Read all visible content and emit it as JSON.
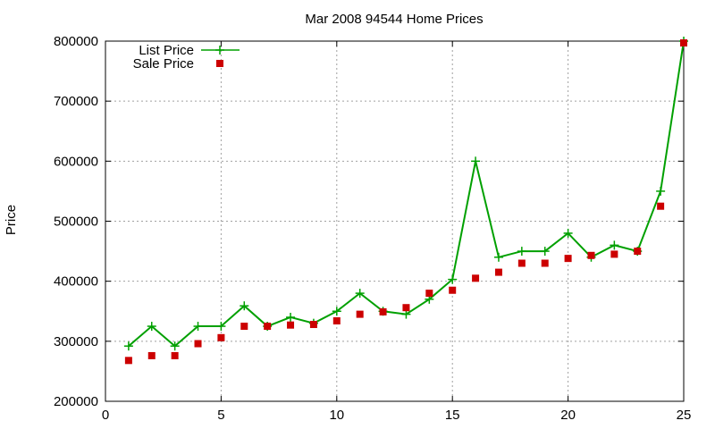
{
  "chart_data": {
    "type": "line",
    "title": "Mar 2008 94544 Home Prices",
    "xlabel": "",
    "ylabel": "Price",
    "xlim": [
      0,
      25
    ],
    "ylim": [
      200000,
      800000
    ],
    "xticks": [
      "0",
      "5",
      "10",
      "15",
      "20",
      "25"
    ],
    "yticks": [
      "200000",
      "300000",
      "400000",
      "500000",
      "600000",
      "700000",
      "800000"
    ],
    "grid": true,
    "legend_position": "top-left",
    "x": [
      1,
      2,
      3,
      4,
      5,
      6,
      7,
      8,
      9,
      10,
      11,
      12,
      13,
      14,
      15,
      16,
      17,
      18,
      19,
      20,
      21,
      22,
      23,
      24,
      25
    ],
    "series": [
      {
        "name": "List Price",
        "style": "line-with-plus-markers",
        "color": "#00a000",
        "values": [
          292000,
          325000,
          292000,
          325000,
          325000,
          359000,
          325000,
          340000,
          330000,
          350000,
          380000,
          350000,
          345000,
          370000,
          403000,
          600000,
          440000,
          450000,
          450000,
          480000,
          440000,
          460000,
          450000,
          550000,
          800000
        ]
      },
      {
        "name": "Sale Price",
        "style": "square-markers",
        "color": "#cc0000",
        "values": [
          268000,
          276000,
          276000,
          296000,
          306000,
          325000,
          325000,
          327000,
          328000,
          334000,
          345000,
          349000,
          356000,
          380000,
          385000,
          405000,
          415000,
          430000,
          430000,
          438000,
          443000,
          445000,
          450000,
          525000,
          797000
        ]
      }
    ]
  }
}
